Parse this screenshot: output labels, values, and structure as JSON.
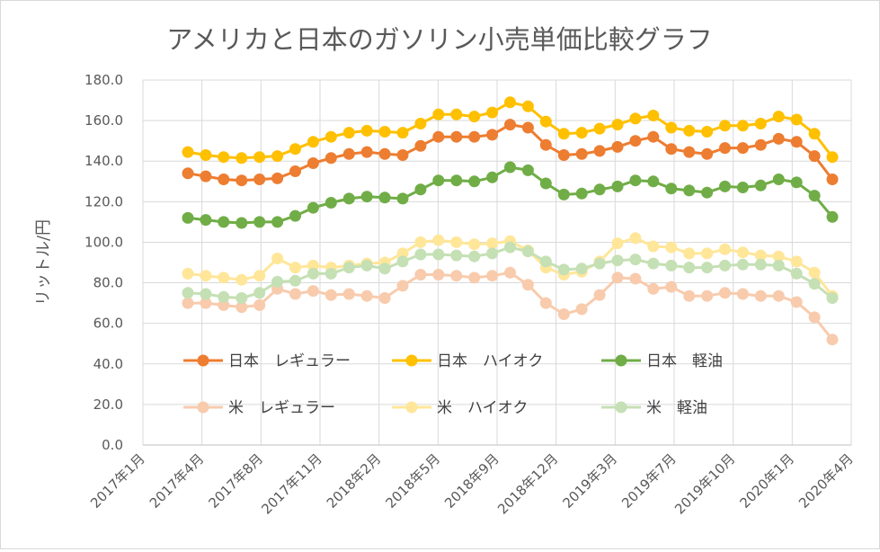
{
  "chart_data": {
    "type": "line",
    "title": "アメリカと日本のガソリン小売単価比較グラフ",
    "ylabel": "リットル/円",
    "xlabel": "",
    "ylim": [
      0,
      180
    ],
    "yticks": [
      "0.0",
      "20.0",
      "40.0",
      "60.0",
      "80.0",
      "100.0",
      "120.0",
      "140.0",
      "160.0",
      "180.0"
    ],
    "xticks": [
      "2017年1月",
      "2017年4月",
      "2017年8月",
      "2017年11月",
      "2018年2月",
      "2018年5月",
      "2018年9月",
      "2018年12月",
      "2019年3月",
      "2019年7月",
      "2019年10月",
      "2020年1月",
      "2020年4月"
    ],
    "grid": true,
    "series": [
      {
        "name": "日本　レギュラー",
        "color": "#ED7D31",
        "values": [
          134,
          132.5,
          131,
          130.5,
          131,
          131.5,
          135,
          139,
          141.5,
          143.5,
          144.5,
          143.5,
          143,
          147.5,
          152,
          152,
          152,
          153,
          158,
          156.5,
          148,
          143,
          143.5,
          145,
          147,
          150,
          152,
          146,
          144.5,
          143.5,
          146.5,
          146.5,
          148,
          151,
          149.5,
          142.5,
          131
        ]
      },
      {
        "name": "日本　ハイオク",
        "color": "#FFC000",
        "values": [
          144.5,
          143,
          142,
          141.5,
          142,
          142.5,
          146,
          149.5,
          152,
          154,
          155,
          154.5,
          154,
          158.5,
          163,
          163,
          162,
          164,
          169,
          167,
          159.5,
          153.5,
          154,
          156,
          158,
          161,
          162.5,
          156.5,
          155,
          154.5,
          157.5,
          157.5,
          158.5,
          162,
          160.5,
          153.5,
          142
        ]
      },
      {
        "name": "日本　軽油",
        "color": "#70AD47",
        "values": [
          112,
          111,
          110,
          109.5,
          110,
          110,
          113,
          117,
          119.5,
          121.5,
          122.5,
          122,
          121.5,
          126,
          130.5,
          130.5,
          130,
          132,
          137,
          135.5,
          129,
          123.5,
          124,
          126,
          127.5,
          130.5,
          130,
          126.5,
          125.5,
          124.5,
          127.5,
          127,
          128,
          131,
          129.5,
          123,
          112.5
        ]
      },
      {
        "name": "米　レギュラー",
        "color": "#F8CBAD",
        "values": [
          70,
          70,
          69,
          68,
          69,
          77,
          74.5,
          76,
          74,
          74.5,
          73.5,
          72.5,
          78.5,
          84,
          84,
          83.5,
          82.5,
          83.5,
          85,
          79,
          70,
          64.5,
          67,
          74,
          82.5,
          82,
          77,
          78,
          73.5,
          73.5,
          75,
          74.5,
          73.5,
          73.5,
          70.5,
          63,
          52
        ]
      },
      {
        "name": "米　ハイオク",
        "color": "#FFE699",
        "values": [
          84.5,
          83.5,
          82.5,
          81.5,
          83.5,
          92,
          87.5,
          88.5,
          87.5,
          88.5,
          89.5,
          90,
          94.5,
          100,
          101,
          100,
          99,
          99.5,
          100.5,
          96,
          87.5,
          84,
          85.5,
          90.5,
          99.5,
          102,
          98,
          97.5,
          94.5,
          94.5,
          96.5,
          95,
          93.5,
          93,
          90.5,
          85,
          73.5
        ]
      },
      {
        "name": "米　軽油",
        "color": "#C5E0B4",
        "values": [
          75,
          74.5,
          73,
          72.5,
          75,
          80.5,
          81,
          84.5,
          84.5,
          87.5,
          88.5,
          87,
          90.5,
          94,
          94,
          93.5,
          93,
          94.5,
          97.5,
          95.5,
          90.5,
          86.5,
          87,
          89.5,
          91,
          91.5,
          89.5,
          88.5,
          87.5,
          87.5,
          88.5,
          89,
          89,
          88.5,
          84.5,
          79.5,
          72.5
        ]
      }
    ]
  }
}
